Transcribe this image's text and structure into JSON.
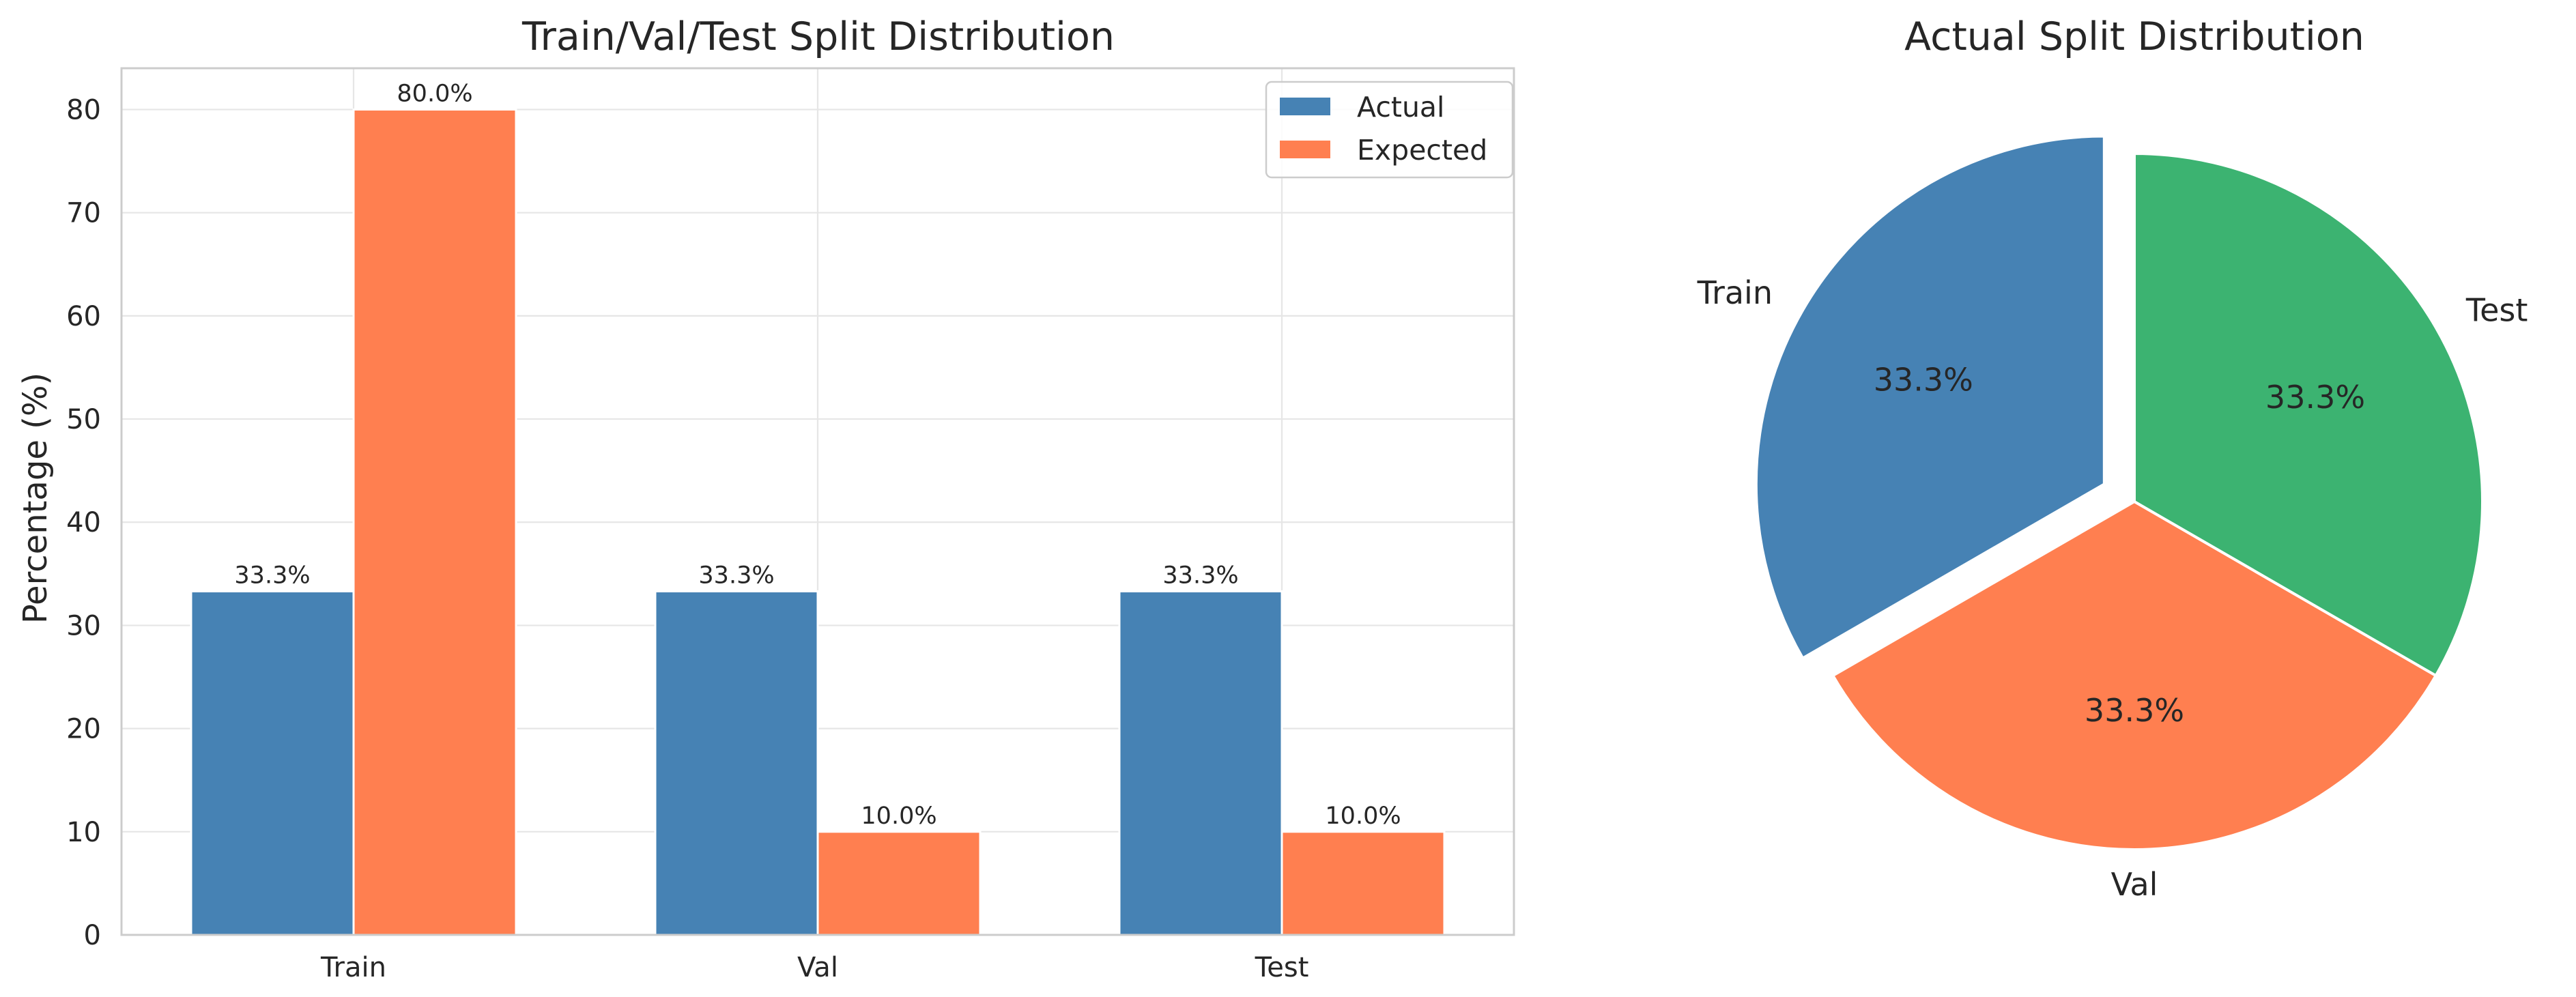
{
  "chart_data": [
    {
      "type": "bar",
      "title": "Train/Val/Test Split Distribution",
      "xlabel": "",
      "ylabel": "Percentage (%)",
      "categories": [
        "Train",
        "Val",
        "Test"
      ],
      "series": [
        {
          "name": "Actual",
          "color": "#4682b4",
          "values": [
            33.3,
            33.3,
            33.3
          ],
          "labels": [
            "33.3%",
            "33.3%",
            "33.3%"
          ]
        },
        {
          "name": "Expected",
          "color": "#ff7f50",
          "values": [
            80.0,
            10.0,
            10.0
          ],
          "labels": [
            "80.0%",
            "10.0%",
            "10.0%"
          ]
        }
      ],
      "ylim": [
        0,
        84
      ],
      "yticks": [
        0,
        10,
        20,
        30,
        40,
        50,
        60,
        70,
        80
      ],
      "grid": true,
      "legend_position": "top-right"
    },
    {
      "type": "pie",
      "title": "Actual Split Distribution",
      "slices": [
        {
          "label": "Train",
          "value": 33.3,
          "pct_label": "33.3%",
          "color": "#4682b4",
          "exploded": true
        },
        {
          "label": "Val",
          "value": 33.3,
          "pct_label": "33.3%",
          "color": "#ff7f50",
          "exploded": false
        },
        {
          "label": "Test",
          "value": 33.3,
          "pct_label": "33.3%",
          "color": "#3cb371",
          "exploded": false
        }
      ],
      "start_angle": 90
    }
  ]
}
